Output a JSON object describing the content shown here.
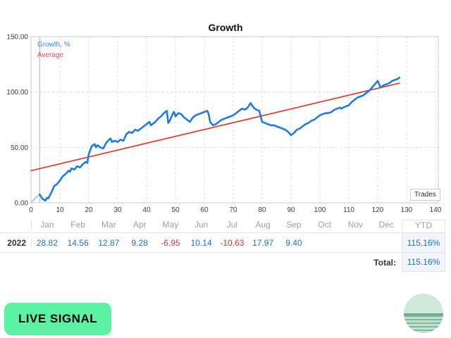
{
  "chart": {
    "title": "Growth",
    "x_axis_label": "Trades",
    "legend": [
      {
        "label": "Growth, %",
        "color": "#3c82ee"
      },
      {
        "label": "Average",
        "color": "#f0483f"
      }
    ]
  },
  "chart_data": {
    "type": "line",
    "title": "Growth",
    "xlabel": "Trades",
    "ylabel": "Growth, %",
    "xlim": [
      0,
      141
    ],
    "ylim": [
      0,
      150
    ],
    "xticks": [
      0,
      10,
      20,
      30,
      40,
      50,
      60,
      70,
      80,
      90,
      100,
      110,
      120,
      130,
      140
    ],
    "yticks": [
      {
        "value": 0,
        "label": "0.00"
      },
      {
        "value": 50,
        "label": "50.00"
      },
      {
        "value": 100,
        "label": "100.00"
      },
      {
        "value": 150,
        "label": "150.00"
      }
    ],
    "grid": "dashed",
    "start_marker_x": 3,
    "intro_segment": {
      "color": "#b9cfe8",
      "points": [
        [
          0,
          0
        ],
        [
          1,
          3
        ],
        [
          2,
          5.5
        ],
        [
          3,
          7.5
        ]
      ]
    },
    "series": [
      {
        "name": "Growth, %",
        "color": "#1e7be4",
        "width": 2.6,
        "points": [
          [
            3,
            7.5
          ],
          [
            4,
            3.5
          ],
          [
            5,
            2
          ],
          [
            5.5,
            4.5
          ],
          [
            6,
            4
          ],
          [
            7,
            9
          ],
          [
            8,
            15
          ],
          [
            9,
            17
          ],
          [
            10,
            20
          ],
          [
            11,
            24
          ],
          [
            12,
            26
          ],
          [
            13,
            29
          ],
          [
            13.5,
            28
          ],
          [
            14,
            31
          ],
          [
            15,
            30
          ],
          [
            16,
            33
          ],
          [
            17,
            32
          ],
          [
            18,
            35
          ],
          [
            19,
            37
          ],
          [
            19.5,
            36
          ],
          [
            20,
            44
          ],
          [
            21,
            51
          ],
          [
            22,
            53
          ],
          [
            22.5,
            50
          ],
          [
            23,
            52
          ],
          [
            24,
            50
          ],
          [
            25,
            49
          ],
          [
            26,
            54
          ],
          [
            27,
            57
          ],
          [
            27.5,
            58
          ],
          [
            28,
            55
          ],
          [
            29,
            56
          ],
          [
            30,
            55
          ],
          [
            31,
            57
          ],
          [
            32,
            56
          ],
          [
            33,
            62
          ],
          [
            34,
            64
          ],
          [
            35,
            63
          ],
          [
            36,
            66
          ],
          [
            37,
            65
          ],
          [
            38,
            67
          ],
          [
            39,
            69
          ],
          [
            40,
            71
          ],
          [
            41,
            73
          ],
          [
            41.5,
            70
          ],
          [
            42,
            71
          ],
          [
            43,
            73
          ],
          [
            44,
            76
          ],
          [
            45,
            78
          ],
          [
            46,
            81
          ],
          [
            47,
            83
          ],
          [
            47.5,
            72
          ],
          [
            48,
            74
          ],
          [
            49,
            80
          ],
          [
            49.5,
            82
          ],
          [
            50,
            78
          ],
          [
            51,
            81
          ],
          [
            52,
            80
          ],
          [
            53,
            77
          ],
          [
            54,
            75
          ],
          [
            55,
            73
          ],
          [
            56,
            77
          ],
          [
            57,
            79
          ],
          [
            58,
            80
          ],
          [
            59,
            81
          ],
          [
            60,
            82
          ],
          [
            61,
            83
          ],
          [
            61.5,
            80
          ],
          [
            62,
            73
          ],
          [
            63,
            70
          ],
          [
            64,
            71
          ],
          [
            65,
            73
          ],
          [
            66,
            75
          ],
          [
            67,
            76
          ],
          [
            68,
            77
          ],
          [
            69,
            78
          ],
          [
            70,
            79
          ],
          [
            71,
            81
          ],
          [
            72,
            83
          ],
          [
            73,
            85
          ],
          [
            74,
            84
          ],
          [
            74.5,
            85
          ],
          [
            75,
            86
          ],
          [
            76,
            90
          ],
          [
            77,
            86
          ],
          [
            78,
            84
          ],
          [
            79,
            83
          ],
          [
            80,
            73
          ],
          [
            81,
            72
          ],
          [
            82,
            71
          ],
          [
            83,
            70
          ],
          [
            84,
            70
          ],
          [
            85,
            69
          ],
          [
            86,
            68
          ],
          [
            87,
            67
          ],
          [
            88,
            66
          ],
          [
            89,
            64
          ],
          [
            90,
            61
          ],
          [
            91,
            63
          ],
          [
            92,
            66
          ],
          [
            93,
            67
          ],
          [
            94,
            69
          ],
          [
            95,
            71
          ],
          [
            96,
            72
          ],
          [
            97,
            74
          ],
          [
            98,
            75
          ],
          [
            99,
            77
          ],
          [
            100,
            79
          ],
          [
            101,
            80
          ],
          [
            102,
            81
          ],
          [
            103,
            81
          ],
          [
            104,
            82
          ],
          [
            105,
            84
          ],
          [
            106,
            85
          ],
          [
            107,
            86
          ],
          [
            107.5,
            85
          ],
          [
            108,
            86
          ],
          [
            109,
            87
          ],
          [
            110,
            88
          ],
          [
            111,
            91
          ],
          [
            112,
            93
          ],
          [
            113,
            95
          ],
          [
            114,
            96
          ],
          [
            115,
            97
          ],
          [
            116,
            99
          ],
          [
            117,
            101
          ],
          [
            118,
            104
          ],
          [
            119,
            107
          ],
          [
            120,
            110
          ],
          [
            121,
            104
          ],
          [
            122,
            106
          ],
          [
            123,
            107
          ],
          [
            124,
            108
          ],
          [
            125,
            110
          ],
          [
            126,
            111
          ],
          [
            127,
            112
          ],
          [
            127.5,
            113
          ]
        ]
      },
      {
        "name": "Average",
        "color": "#f3261d",
        "width": 1.6,
        "points": [
          [
            0,
            29
          ],
          [
            127.5,
            108
          ]
        ]
      }
    ]
  },
  "table": {
    "columns": [
      "Jan",
      "Feb",
      "Mar",
      "Apr",
      "May",
      "Jun",
      "Jul",
      "Aug",
      "Sep",
      "Oct",
      "Nov",
      "Dec"
    ],
    "ytd_header": "YTD",
    "rows": [
      {
        "year": "2022",
        "values": [
          "28.82",
          "14.56",
          "12.87",
          "9.28",
          "-6.95",
          "10.14",
          "-10.63",
          "17.97",
          "9.40",
          "",
          "",
          ""
        ],
        "ytd": "115.16%"
      }
    ],
    "total_label": "Total:",
    "total_value": "115.16%"
  },
  "footer": {
    "live_signal_label": "LIVE SIGNAL"
  },
  "colors": {
    "positive": "#1b6fc5",
    "negative": "#c43b31",
    "accent_green": "#5cf2a4"
  }
}
